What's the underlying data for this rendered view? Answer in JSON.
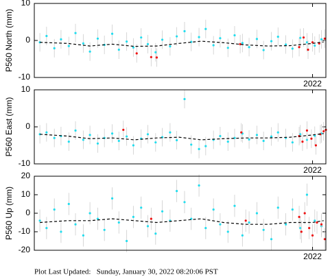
{
  "chart_data": [
    {
      "type": "scatter",
      "y_label": "P560 North (mm)",
      "xlim": [
        2019.5,
        2022.12
      ],
      "xticks": [
        2022
      ],
      "ylim": [
        -10,
        10
      ],
      "yticks": [
        -10,
        0,
        10
      ],
      "series": [
        {
          "color": "#22ddee",
          "error": 2.5,
          "x": [
            2019.55,
            2019.61,
            2019.68,
            2019.74,
            2019.81,
            2019.87,
            2019.94,
            2020.0,
            2020.07,
            2020.13,
            2020.2,
            2020.26,
            2020.33,
            2020.39,
            2020.46,
            2020.52,
            2020.59,
            2020.65,
            2020.72,
            2020.78,
            2020.85,
            2020.91,
            2020.98,
            2021.04,
            2021.11,
            2021.17,
            2021.24,
            2021.3,
            2021.37,
            2021.43,
            2021.5,
            2021.56,
            2021.63,
            2021.69,
            2021.76,
            2021.82,
            2021.89,
            2021.95,
            2022.02,
            2022.08
          ],
          "values": [
            -0.5,
            1.2,
            -2.1,
            0.3,
            -1.5,
            2.0,
            -0.8,
            -3.0,
            0.5,
            -1.2,
            1.8,
            -2.5,
            -0.3,
            -1.9,
            0.8,
            -1.0,
            -3.2,
            0.2,
            -1.6,
            1.1,
            2.5,
            -0.4,
            0.9,
            3.1,
            -1.3,
            0.6,
            -2.0,
            1.4,
            -0.7,
            -1.8,
            0.4,
            -2.6,
            -0.2,
            1.0,
            -1.1,
            -2.2,
            0.7,
            -0.5,
            -1.4,
            0.3
          ]
        },
        {
          "color": "#ee1111",
          "error": 2.5,
          "x": [
            2020.42,
            2020.55,
            2020.6,
            2021.35,
            2021.88,
            2021.92,
            2021.96,
            2022.0,
            2022.06,
            2022.11
          ],
          "values": [
            -3.5,
            -4.5,
            -4.6,
            -1.0,
            -1.8,
            0.8,
            -2.5,
            -0.5,
            -0.8,
            0.5
          ]
        },
        {
          "color": "#000000",
          "style": "dashed",
          "x": [
            2019.55,
            2019.8,
            2020.0,
            2020.2,
            2020.4,
            2020.6,
            2020.8,
            2021.0,
            2021.2,
            2021.4,
            2021.6,
            2021.8,
            2022.0,
            2022.1
          ],
          "values": [
            -0.5,
            -0.8,
            -1.5,
            -1.0,
            -1.6,
            -1.5,
            -0.8,
            -0.2,
            -0.6,
            -1.2,
            -1.5,
            -1.4,
            -0.8,
            -0.4
          ]
        }
      ]
    },
    {
      "type": "scatter",
      "y_label": "P560 East (mm)",
      "xlim": [
        2019.5,
        2022.12
      ],
      "xticks": [
        2022
      ],
      "ylim": [
        -10,
        10
      ],
      "yticks": [
        -10,
        0,
        10
      ],
      "series": [
        {
          "color": "#22ddee",
          "error": 2.5,
          "x": [
            2019.55,
            2019.61,
            2019.68,
            2019.74,
            2019.81,
            2019.87,
            2019.94,
            2020.0,
            2020.07,
            2020.13,
            2020.2,
            2020.26,
            2020.33,
            2020.39,
            2020.46,
            2020.52,
            2020.59,
            2020.65,
            2020.72,
            2020.78,
            2020.85,
            2020.91,
            2020.98,
            2021.04,
            2021.11,
            2021.17,
            2021.24,
            2021.3,
            2021.37,
            2021.43,
            2021.5,
            2021.56,
            2021.63,
            2021.69,
            2021.76,
            2021.82,
            2021.89,
            2021.95,
            2022.02,
            2022.08
          ],
          "values": [
            -2.0,
            -1.5,
            -3.0,
            -2.5,
            -4.0,
            -1.0,
            -3.5,
            -2.2,
            -4.5,
            -3.0,
            -1.8,
            -3.8,
            -2.6,
            -5.0,
            -3.2,
            -2.0,
            -4.2,
            -2.8,
            -1.5,
            -3.6,
            7.5,
            -4.8,
            -6.0,
            -5.2,
            -3.5,
            -2.5,
            -4.0,
            -3.0,
            -1.8,
            -3.4,
            -2.2,
            -3.8,
            -2.6,
            -1.5,
            -3.0,
            -4.2,
            -2.0,
            -3.5,
            -2.4,
            -1.8
          ]
        },
        {
          "color": "#ee1111",
          "error": 2.5,
          "x": [
            2020.3,
            2021.36,
            2021.88,
            2021.91,
            2021.95,
            2021.99,
            2022.03,
            2022.07,
            2022.1,
            2022.12
          ],
          "values": [
            -0.8,
            -1.5,
            -2.5,
            -4.0,
            -1.0,
            -3.2,
            -5.0,
            -2.0,
            -1.2,
            -0.8
          ]
        },
        {
          "color": "#000000",
          "style": "dashed",
          "x": [
            2019.55,
            2019.8,
            2020.0,
            2020.2,
            2020.4,
            2020.6,
            2020.8,
            2021.0,
            2021.2,
            2021.4,
            2021.6,
            2021.8,
            2022.0,
            2022.1
          ],
          "values": [
            -2.0,
            -2.5,
            -3.2,
            -3.0,
            -3.5,
            -3.0,
            -2.8,
            -3.5,
            -3.2,
            -3.0,
            -3.0,
            -2.8,
            -2.2,
            -1.8
          ]
        }
      ]
    },
    {
      "type": "scatter",
      "y_label": "P560 Up (mm)",
      "xlim": [
        2019.5,
        2022.12
      ],
      "xticks": [
        2022
      ],
      "ylim": [
        -20,
        20
      ],
      "yticks": [
        -20,
        -10,
        0,
        10,
        20
      ],
      "series": [
        {
          "color": "#22ddee",
          "error": 6,
          "x": [
            2019.55,
            2019.61,
            2019.68,
            2019.74,
            2019.81,
            2019.87,
            2019.94,
            2020.0,
            2020.07,
            2020.13,
            2020.2,
            2020.26,
            2020.33,
            2020.39,
            2020.46,
            2020.52,
            2020.59,
            2020.65,
            2020.72,
            2020.78,
            2020.85,
            2020.91,
            2020.98,
            2021.04,
            2021.11,
            2021.17,
            2021.24,
            2021.3,
            2021.37,
            2021.43,
            2021.5,
            2021.56,
            2021.63,
            2021.69,
            2021.76,
            2021.82,
            2021.89,
            2021.95,
            2022.02,
            2022.08
          ],
          "values": [
            -4,
            -8,
            2,
            -10,
            5,
            -6,
            -12,
            0,
            -3,
            -9,
            8,
            -5,
            -15,
            -2,
            3,
            -7,
            -11,
            1,
            -4,
            12,
            6,
            -3,
            15,
            -8,
            2,
            -6,
            -10,
            4,
            -12,
            -5,
            0,
            -9,
            -14,
            3,
            -6,
            2,
            -8,
            10,
            -4,
            -7
          ]
        },
        {
          "color": "#ee1111",
          "error": 6,
          "x": [
            2020.55,
            2021.4,
            2021.88,
            2021.9,
            2021.93,
            2021.97,
            2022.0,
            2022.04,
            2022.08,
            2022.11
          ],
          "values": [
            -3,
            -4,
            -2,
            -10,
            0,
            -8,
            -12,
            -5,
            -6,
            -14
          ]
        },
        {
          "color": "#000000",
          "style": "dashed",
          "x": [
            2019.55,
            2019.8,
            2020.0,
            2020.2,
            2020.4,
            2020.6,
            2020.8,
            2021.0,
            2021.2,
            2021.4,
            2021.6,
            2021.8,
            2022.0,
            2022.1
          ],
          "values": [
            -5,
            -4,
            -4,
            -3,
            -4,
            -5,
            -4,
            -3,
            -5,
            -6,
            -6,
            -5,
            -5,
            -4
          ]
        }
      ]
    }
  ],
  "footer": "Plot Last Updated:   Sunday, January 30, 2022 08:20:06 PST"
}
